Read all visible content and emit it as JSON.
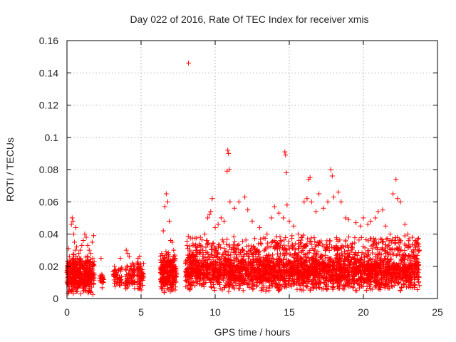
{
  "chart_data": {
    "type": "scatter",
    "title": "Day 022 of 2016, Rate Of TEC Index for receiver xmis",
    "xlabel": "GPS time / hours",
    "ylabel": "ROTI / TECUs",
    "xlim": [
      0,
      25
    ],
    "ylim": [
      0,
      0.16
    ],
    "xticks": [
      0,
      5,
      10,
      15,
      20,
      25
    ],
    "xtick_labels": [
      "0",
      "5",
      "10",
      "15",
      "20",
      "25"
    ],
    "yticks": [
      0,
      0.02,
      0.04,
      0.06,
      0.08,
      0.1,
      0.12,
      0.14,
      0.16
    ],
    "ytick_labels": [
      "0",
      "0.02",
      "0.04",
      "0.06",
      "0.08",
      "0.1",
      "0.12",
      "0.14",
      "0.16"
    ],
    "grid": true,
    "marker": "plus",
    "color": "#ff0000",
    "series": [
      {
        "x": [
          0.1,
          0.2,
          0.3,
          0.35,
          0.4,
          0.45,
          0.5,
          0.55,
          0.6,
          0.65,
          0.7,
          0.8,
          0.9,
          1.0,
          1.1,
          1.2,
          1.3,
          1.4,
          1.5,
          1.6,
          1.7,
          1.8,
          2.3,
          2.35,
          2.4,
          3.2,
          3.3,
          3.4,
          3.6,
          3.7,
          4.0,
          4.1,
          4.2,
          4.3,
          4.4,
          4.5,
          4.8,
          4.9,
          5.0,
          5.1,
          6.5,
          6.6,
          6.7,
          6.8,
          6.9,
          7.0,
          7.1,
          7.2,
          7.3,
          8.1,
          8.2,
          8.3,
          8.5,
          8.7,
          9.0,
          9.3,
          9.5,
          9.6,
          9.7,
          9.8,
          10.0,
          10.2,
          10.4,
          10.6,
          10.8,
          10.85,
          10.9,
          10.95,
          11.0,
          11.3,
          11.6,
          12.0,
          12.2,
          12.5,
          13.0,
          13.5,
          13.8,
          14.0,
          14.3,
          14.6,
          14.7,
          14.75,
          14.8,
          14.85,
          15.0,
          15.3,
          15.6,
          16.0,
          16.2,
          16.3,
          16.4,
          16.5,
          16.8,
          17.0,
          17.3,
          17.6,
          17.8,
          17.9,
          18.0,
          18.3,
          18.5,
          18.8,
          19.0,
          19.5,
          19.8,
          20.0,
          20.3,
          20.5,
          20.8,
          21.0,
          21.3,
          21.5,
          21.8,
          22.0,
          22.2,
          22.3,
          22.5,
          22.8,
          23.0,
          23.3,
          23.5,
          23.7
        ],
        "y": [
          0.031,
          0.022,
          0.046,
          0.05,
          0.048,
          0.04,
          0.035,
          0.03,
          0.044,
          0.032,
          0.025,
          0.028,
          0.03,
          0.033,
          0.036,
          0.04,
          0.038,
          0.033,
          0.03,
          0.028,
          0.035,
          0.039,
          0.025,
          0.015,
          0.012,
          0.02,
          0.018,
          0.012,
          0.025,
          0.019,
          0.03,
          0.028,
          0.026,
          0.02,
          0.022,
          0.016,
          0.025,
          0.026,
          0.02,
          0.018,
          0.042,
          0.057,
          0.065,
          0.06,
          0.048,
          0.036,
          0.035,
          0.03,
          0.025,
          0.033,
          0.146,
          0.03,
          0.034,
          0.03,
          0.038,
          0.04,
          0.05,
          0.052,
          0.054,
          0.062,
          0.044,
          0.046,
          0.05,
          0.048,
          0.079,
          0.092,
          0.09,
          0.08,
          0.06,
          0.056,
          0.06,
          0.063,
          0.055,
          0.048,
          0.044,
          0.04,
          0.05,
          0.057,
          0.053,
          0.05,
          0.091,
          0.089,
          0.078,
          0.058,
          0.048,
          0.045,
          0.04,
          0.06,
          0.062,
          0.074,
          0.075,
          0.06,
          0.054,
          0.065,
          0.056,
          0.06,
          0.08,
          0.076,
          0.063,
          0.066,
          0.06,
          0.05,
          0.049,
          0.047,
          0.045,
          0.05,
          0.046,
          0.048,
          0.05,
          0.054,
          0.055,
          0.045,
          0.04,
          0.065,
          0.074,
          0.062,
          0.06,
          0.046,
          0.04,
          0.038,
          0.036,
          0.034
        ]
      }
    ],
    "dense_bands": [
      {
        "x_range": [
          0.0,
          1.85
        ],
        "y_range": [
          0.002,
          0.028
        ],
        "count": 420
      },
      {
        "x_range": [
          2.2,
          2.5
        ],
        "y_range": [
          0.006,
          0.02
        ],
        "count": 20
      },
      {
        "x_range": [
          3.1,
          3.7
        ],
        "y_range": [
          0.006,
          0.02
        ],
        "count": 45
      },
      {
        "x_range": [
          3.9,
          4.6
        ],
        "y_range": [
          0.005,
          0.022
        ],
        "count": 70
      },
      {
        "x_range": [
          4.7,
          5.2
        ],
        "y_range": [
          0.004,
          0.024
        ],
        "count": 60
      },
      {
        "x_range": [
          6.3,
          7.4
        ],
        "y_range": [
          0.003,
          0.03
        ],
        "count": 260
      },
      {
        "x_range": [
          8.0,
          23.8
        ],
        "y_range": [
          0.004,
          0.03
        ],
        "count": 2600
      },
      {
        "x_range": [
          8.0,
          23.8
        ],
        "y_range": [
          0.025,
          0.04
        ],
        "count": 380
      }
    ]
  }
}
